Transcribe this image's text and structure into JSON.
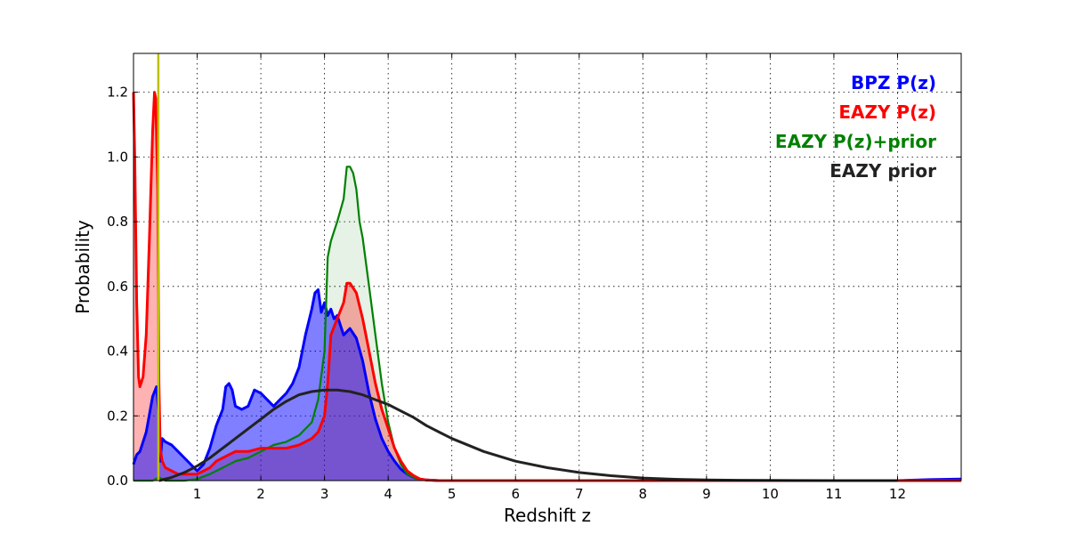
{
  "chart_data": {
    "type": "area",
    "xlabel": "Redshift z",
    "ylabel": "Probability",
    "xlim": [
      0,
      13
    ],
    "ylim": [
      0,
      1.32
    ],
    "x_ticks": [
      1,
      2,
      3,
      4,
      5,
      6,
      7,
      8,
      9,
      10,
      11,
      12
    ],
    "x_tick_labels": [
      "1",
      "2",
      "3",
      "4",
      "5",
      "6",
      "7",
      "8",
      "9",
      "10",
      "11",
      "12"
    ],
    "y_ticks": [
      0.0,
      0.2,
      0.4,
      0.6,
      0.8,
      1.0,
      1.2
    ],
    "y_tick_labels": [
      "0.0",
      "0.2",
      "0.4",
      "0.6",
      "0.8",
      "1.0",
      "1.2"
    ],
    "grid": true,
    "legend_position": "top-right",
    "reference_line": {
      "x": 0.39,
      "color": "#bfbf00"
    },
    "series": [
      {
        "name": "BPZ P(z)",
        "color": "#0000ff",
        "fill_color": "#0000ff",
        "filled": true,
        "x": [
          0,
          0.05,
          0.1,
          0.2,
          0.3,
          0.36,
          0.4,
          0.42,
          0.45,
          0.5,
          0.6,
          0.7,
          0.8,
          0.9,
          1.0,
          1.1,
          1.2,
          1.3,
          1.4,
          1.45,
          1.5,
          1.55,
          1.6,
          1.7,
          1.8,
          1.9,
          2.0,
          2.1,
          2.2,
          2.3,
          2.4,
          2.5,
          2.6,
          2.7,
          2.8,
          2.85,
          2.9,
          2.95,
          3.0,
          3.05,
          3.1,
          3.15,
          3.2,
          3.3,
          3.4,
          3.5,
          3.6,
          3.7,
          3.8,
          3.9,
          4.0,
          4.1,
          4.2,
          4.3,
          4.4,
          4.5,
          4.6,
          4.8,
          5.0,
          6.0,
          8.0,
          10.0,
          12.0,
          12.5,
          13.0
        ],
        "y": [
          0.05,
          0.08,
          0.09,
          0.15,
          0.26,
          0.29,
          0.2,
          0.06,
          0.13,
          0.12,
          0.11,
          0.09,
          0.07,
          0.05,
          0.03,
          0.05,
          0.1,
          0.17,
          0.22,
          0.29,
          0.3,
          0.28,
          0.23,
          0.22,
          0.23,
          0.28,
          0.27,
          0.25,
          0.23,
          0.25,
          0.27,
          0.3,
          0.35,
          0.45,
          0.53,
          0.58,
          0.59,
          0.52,
          0.55,
          0.51,
          0.53,
          0.5,
          0.51,
          0.45,
          0.47,
          0.44,
          0.37,
          0.27,
          0.19,
          0.13,
          0.09,
          0.06,
          0.035,
          0.02,
          0.01,
          0.005,
          0.002,
          0.0,
          0.0,
          0.0,
          0.0,
          0.0,
          0.0,
          0.003,
          0.005
        ]
      },
      {
        "name": "EAZY P(z)",
        "color": "#ff0000",
        "fill_color": "#ff0000",
        "filled": true,
        "x": [
          0,
          0.02,
          0.05,
          0.08,
          0.1,
          0.15,
          0.2,
          0.25,
          0.3,
          0.33,
          0.35,
          0.38,
          0.4,
          0.42,
          0.45,
          0.5,
          0.6,
          0.7,
          0.8,
          0.9,
          1.0,
          1.1,
          1.2,
          1.3,
          1.4,
          1.5,
          1.6,
          1.7,
          1.8,
          1.9,
          2.0,
          2.2,
          2.4,
          2.6,
          2.8,
          2.9,
          3.0,
          3.05,
          3.1,
          3.2,
          3.3,
          3.35,
          3.4,
          3.5,
          3.6,
          3.7,
          3.8,
          3.9,
          4.0,
          4.1,
          4.2,
          4.3,
          4.4,
          4.5,
          4.6,
          4.8,
          5.0,
          13.0
        ],
        "y": [
          1.2,
          1.0,
          0.55,
          0.32,
          0.29,
          0.32,
          0.45,
          0.75,
          1.08,
          1.2,
          1.18,
          0.9,
          0.3,
          0.1,
          0.06,
          0.04,
          0.03,
          0.02,
          0.02,
          0.02,
          0.02,
          0.03,
          0.04,
          0.06,
          0.07,
          0.08,
          0.09,
          0.09,
          0.09,
          0.095,
          0.1,
          0.1,
          0.1,
          0.11,
          0.13,
          0.15,
          0.2,
          0.3,
          0.45,
          0.5,
          0.55,
          0.61,
          0.61,
          0.58,
          0.5,
          0.4,
          0.3,
          0.22,
          0.16,
          0.1,
          0.06,
          0.03,
          0.015,
          0.005,
          0.002,
          0.0,
          0.0,
          0.0
        ]
      },
      {
        "name": "EAZY P(z)+prior",
        "color": "#008000",
        "fill_color": "#008000",
        "filled": true,
        "x": [
          0,
          0.3,
          0.35,
          0.4,
          0.45,
          0.5,
          0.8,
          1.0,
          1.2,
          1.4,
          1.6,
          1.8,
          2.0,
          2.2,
          2.4,
          2.6,
          2.8,
          2.9,
          3.0,
          3.05,
          3.1,
          3.15,
          3.2,
          3.3,
          3.35,
          3.4,
          3.45,
          3.5,
          3.55,
          3.6,
          3.7,
          3.8,
          3.9,
          4.0,
          4.1,
          4.2,
          4.3,
          4.4,
          4.5,
          4.6,
          4.8,
          5.0,
          13.0
        ],
        "y": [
          0.0,
          0.0,
          0.005,
          0.01,
          0.005,
          0.0,
          0.0,
          0.005,
          0.02,
          0.04,
          0.06,
          0.07,
          0.09,
          0.11,
          0.12,
          0.14,
          0.18,
          0.25,
          0.4,
          0.69,
          0.74,
          0.77,
          0.8,
          0.87,
          0.97,
          0.97,
          0.95,
          0.9,
          0.8,
          0.75,
          0.6,
          0.45,
          0.3,
          0.18,
          0.1,
          0.05,
          0.02,
          0.01,
          0.003,
          0.001,
          0.0,
          0.0,
          0.0
        ]
      },
      {
        "name": "EAZY prior",
        "color": "#222222",
        "filled": false,
        "x": [
          0.4,
          0.6,
          0.8,
          1.0,
          1.2,
          1.4,
          1.6,
          1.8,
          2.0,
          2.2,
          2.4,
          2.6,
          2.8,
          3.0,
          3.2,
          3.4,
          3.6,
          3.8,
          4.0,
          4.2,
          4.4,
          4.6,
          4.8,
          5.0,
          5.5,
          6.0,
          6.5,
          7.0,
          7.5,
          8.0,
          8.5,
          9.0,
          9.5,
          10.0,
          11.0,
          12.0
        ],
        "y": [
          0.0,
          0.01,
          0.025,
          0.045,
          0.07,
          0.1,
          0.13,
          0.16,
          0.19,
          0.22,
          0.245,
          0.265,
          0.275,
          0.28,
          0.28,
          0.275,
          0.265,
          0.25,
          0.235,
          0.215,
          0.195,
          0.17,
          0.15,
          0.13,
          0.09,
          0.06,
          0.04,
          0.025,
          0.015,
          0.008,
          0.004,
          0.002,
          0.001,
          0.0005,
          0.0,
          0.0
        ]
      }
    ]
  }
}
